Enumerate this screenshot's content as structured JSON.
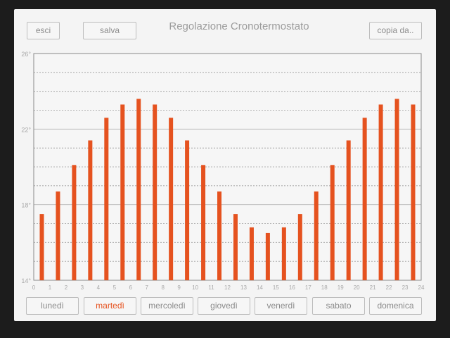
{
  "header": {
    "title": "Regolazione Cronotermostato",
    "exit_label": "esci",
    "save_label": "salva",
    "copy_label": "copia da.."
  },
  "days": [
    {
      "label": "lunedì",
      "active": false
    },
    {
      "label": "martedì",
      "active": true
    },
    {
      "label": "mercoledì",
      "active": false
    },
    {
      "label": "giovedì",
      "active": false
    },
    {
      "label": "venerdì",
      "active": false
    },
    {
      "label": "sabato",
      "active": false
    },
    {
      "label": "domenica",
      "active": false
    }
  ],
  "colors": {
    "accent": "#e5521f",
    "panel_bg": "#f4f4f4",
    "frame_bg": "#1c1c1c"
  },
  "chart_data": {
    "type": "bar",
    "title": "",
    "xlabel": "",
    "ylabel": "",
    "x_ticks": [
      "0",
      "1",
      "2",
      "3",
      "4",
      "5",
      "6",
      "7",
      "8",
      "9",
      "10",
      "11",
      "12",
      "13",
      "14",
      "15",
      "16",
      "17",
      "18",
      "19",
      "20",
      "21",
      "22",
      "23",
      "24"
    ],
    "y_ticks": [
      "14°",
      "18°",
      "22°",
      "26°"
    ],
    "ylim": [
      14,
      26
    ],
    "xlim": [
      0,
      24
    ],
    "grid": true,
    "legend": "none",
    "series": [
      {
        "x": [
          0.5,
          1.5,
          2.5,
          3.5,
          4.5,
          5.5,
          6.5,
          7.5,
          8.5,
          9.5,
          10.5,
          11.5,
          12.5,
          13.5,
          14.5,
          15.5,
          16.5,
          17.5,
          18.5,
          19.5,
          20.5,
          21.5,
          22.5,
          23.5
        ],
        "values": [
          17.5,
          18.7,
          20.1,
          21.4,
          22.6,
          23.3,
          23.6,
          23.3,
          22.6,
          21.4,
          20.1,
          18.7,
          17.5,
          16.8,
          16.5,
          16.8,
          17.5,
          18.7,
          20.1,
          21.4,
          22.6,
          23.3,
          23.6,
          23.3
        ]
      }
    ]
  }
}
